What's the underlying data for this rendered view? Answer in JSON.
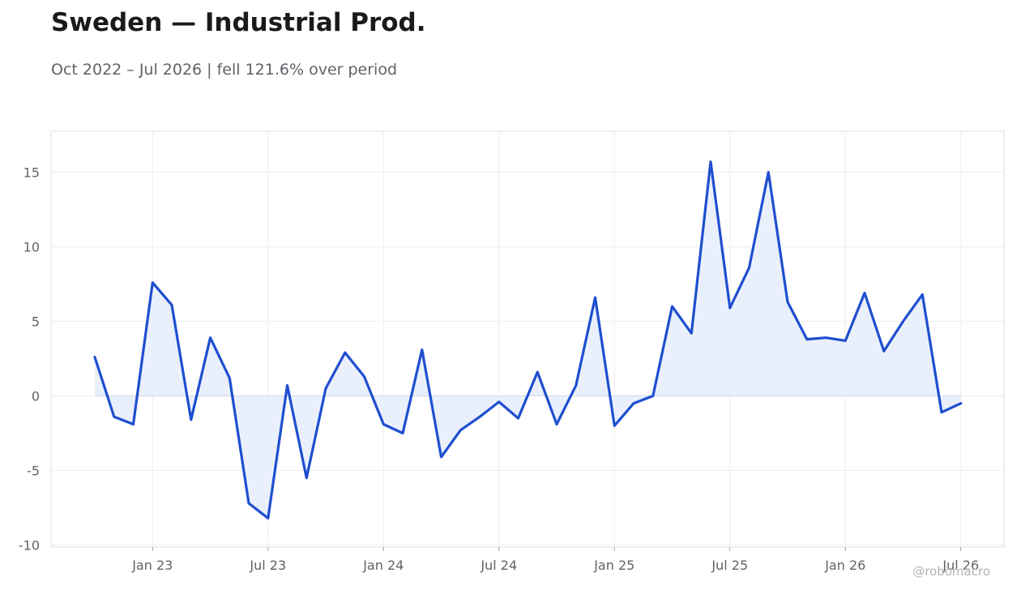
{
  "title": "Sweden — Industrial Prod.",
  "subtitle": "Oct 2022 – Jul 2026 | fell 121.6% over period",
  "watermark": "@robomacro",
  "colors": {
    "line": "#1f4fcf",
    "fill": "#eaf0fb",
    "grid": "#eeeeee",
    "frame": "#e0e0e0",
    "zero": "#d0d8ea"
  },
  "chart_data": {
    "type": "area",
    "title": "Sweden — Industrial Prod.",
    "subtitle": "Oct 2022 – Jul 2026 | fell 121.6% over period",
    "xlabel": "",
    "ylabel": "",
    "x": [
      "2022-10",
      "2022-11",
      "2022-12",
      "2023-01",
      "2023-02",
      "2023-03",
      "2023-04",
      "2023-05",
      "2023-06",
      "2023-07",
      "2023-08",
      "2023-09",
      "2023-10",
      "2023-11",
      "2023-12",
      "2024-01",
      "2024-02",
      "2024-03",
      "2024-04",
      "2024-05",
      "2024-06",
      "2024-07",
      "2024-08",
      "2024-09",
      "2024-10",
      "2024-11",
      "2024-12",
      "2025-01",
      "2025-02",
      "2025-03",
      "2025-04",
      "2025-05",
      "2025-06",
      "2025-07",
      "2025-08",
      "2025-09",
      "2025-10",
      "2025-11",
      "2025-12",
      "2026-01",
      "2026-02",
      "2026-03",
      "2026-04",
      "2026-05",
      "2026-06",
      "2026-07"
    ],
    "series": [
      {
        "values": [
          2.6,
          -1.4,
          -1.9,
          7.6,
          6.1,
          -1.6,
          3.9,
          1.2,
          -7.2,
          -8.2,
          0.7,
          -5.5,
          0.5,
          2.9,
          1.3,
          -1.9,
          -2.5,
          3.1,
          -4.1,
          -2.3,
          -1.4,
          -0.4,
          -1.5,
          1.6,
          -1.9,
          0.7,
          6.6,
          -2.0,
          -0.5,
          0.0,
          6.0,
          4.2,
          15.7,
          5.9,
          8.6,
          15.0,
          6.3,
          3.8,
          3.9,
          3.7,
          6.9,
          3.0,
          5.0,
          6.8,
          -1.1,
          -0.5
        ]
      }
    ],
    "ylim": [
      -10,
      17.5
    ],
    "yticks": [
      -10,
      -5,
      0,
      5,
      10,
      15
    ],
    "ytick_labels": [
      "-10",
      "-5",
      "0",
      "5",
      "10",
      "15"
    ],
    "xticks": [
      "2023-01",
      "2023-07",
      "2024-01",
      "2024-07",
      "2025-01",
      "2025-07",
      "2026-01",
      "2026-07"
    ],
    "xtick_labels": [
      "Jan 23",
      "Jul 23",
      "Jan 24",
      "Jul 24",
      "Jan 25",
      "Jul 25",
      "Jan 26",
      "Jul 26"
    ],
    "grid": true,
    "legend": false
  }
}
